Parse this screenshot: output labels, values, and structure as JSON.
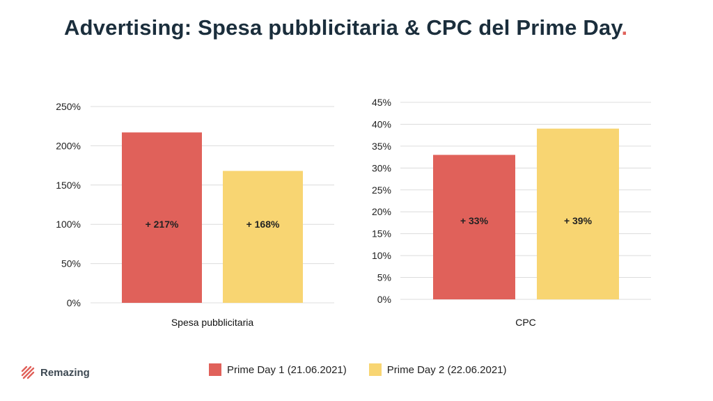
{
  "title": "Advertising: Spesa pubblicitaria & CPC del Prime Day",
  "title_period": ".",
  "colors": {
    "title": "#1b2e3c",
    "accent": "#e0615a",
    "series1": "#e0615a",
    "series2": "#f8d572",
    "grid": "#dcdcdc"
  },
  "logo": {
    "text": "Remazing",
    "icon": "remazing-stripes-logo"
  },
  "legend": [
    {
      "label": "Prime Day 1 (21.06.2021)"
    },
    {
      "label": "Prime Day 2 (22.06.2021)"
    }
  ],
  "chart_data": [
    {
      "type": "bar",
      "categories": [
        "Spesa pubblicitaria"
      ],
      "series": [
        {
          "name": "Prime Day 1 (21.06.2021)",
          "values": [
            217
          ],
          "label": "+ 217%"
        },
        {
          "name": "Prime Day 2 (22.06.2021)",
          "values": [
            168
          ],
          "label": "+ 168%"
        }
      ],
      "xlabel": "Spesa pubblicitaria",
      "ylabel": "",
      "ylim": [
        0,
        250
      ],
      "yticks": [
        0,
        50,
        100,
        150,
        200,
        250
      ],
      "ytick_labels": [
        "0%",
        "50%",
        "100%",
        "150%",
        "200%",
        "250%"
      ],
      "grid": true
    },
    {
      "type": "bar",
      "categories": [
        "CPC"
      ],
      "series": [
        {
          "name": "Prime Day 1 (21.06.2021)",
          "values": [
            33
          ],
          "label": "+ 33%"
        },
        {
          "name": "Prime Day 2 (22.06.2021)",
          "values": [
            39
          ],
          "label": "+ 39%"
        }
      ],
      "xlabel": "CPC",
      "ylabel": "",
      "ylim": [
        0,
        45
      ],
      "yticks": [
        0,
        5,
        10,
        15,
        20,
        25,
        30,
        35,
        40,
        45
      ],
      "ytick_labels": [
        "0%",
        "5%",
        "10%",
        "15%",
        "20%",
        "25%",
        "30%",
        "35%",
        "40%",
        "45%"
      ],
      "grid": true
    }
  ]
}
